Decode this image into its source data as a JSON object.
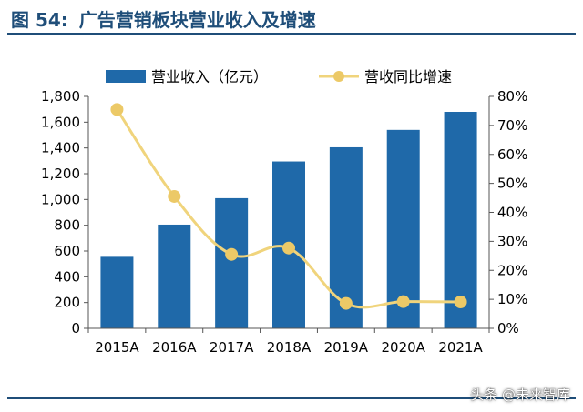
{
  "figure": {
    "label": "图 54:",
    "title": "广告营销板块营业收入及增速"
  },
  "watermark": "头条 @未来智库",
  "chart_data": {
    "type": "bar+line",
    "categories": [
      "2015A",
      "2016A",
      "2017A",
      "2018A",
      "2019A",
      "2020A",
      "2021A"
    ],
    "series": [
      {
        "name": "营业收入（亿元）",
        "kind": "bar",
        "axis": "left",
        "color": "#1f69a9",
        "values": [
          555,
          805,
          1010,
          1295,
          1405,
          1540,
          1680
        ]
      },
      {
        "name": "营收同比增速",
        "kind": "line",
        "axis": "right",
        "color": "#f0d47c",
        "values": [
          0.755,
          0.455,
          0.255,
          0.277,
          0.086,
          0.092,
          0.091
        ]
      }
    ],
    "y_left": {
      "min": 0,
      "max": 1800,
      "step": 200,
      "tick_labels": [
        "0",
        "200",
        "400",
        "600",
        "800",
        "1,000",
        "1,200",
        "1,400",
        "1,600",
        "1,800"
      ]
    },
    "y_right": {
      "min": 0,
      "max": 0.8,
      "step": 0.1,
      "tick_labels": [
        "0%",
        "10%",
        "20%",
        "30%",
        "40%",
        "50%",
        "60%",
        "70%",
        "80%"
      ]
    },
    "legend_position": "top",
    "grid": false
  }
}
